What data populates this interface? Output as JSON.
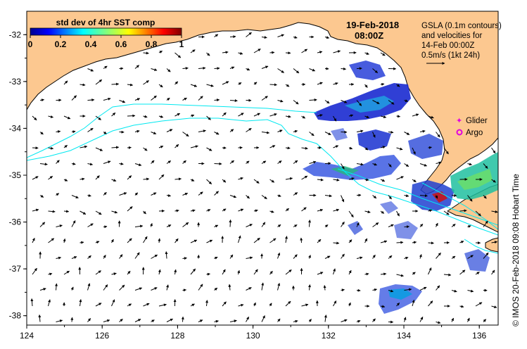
{
  "colorbar": {
    "title": "std dev of 4hr SST comp",
    "ticks": [
      "0",
      "0.2",
      "0.4",
      "0.6",
      "0.8",
      "1"
    ],
    "range": [
      0,
      1
    ]
  },
  "timestamp": {
    "date": "19-Feb-2018",
    "time": "08:00Z"
  },
  "info": {
    "line1": "GSLA (0.1m contours)",
    "line2": "and velocities for",
    "line3": "14-Feb 00:00Z",
    "line4": "0.5m/s (1kt 24h)"
  },
  "legend": {
    "glider": "Glider",
    "argo": "Argo",
    "glider_color": "#e000e0",
    "argo_color": "#e000e0"
  },
  "axes": {
    "lon_ticks": [
      "124",
      "126",
      "128",
      "130",
      "132",
      "134",
      "136"
    ],
    "lat_ticks": [
      "-32",
      "-33",
      "-34",
      "-35",
      "-36",
      "-37",
      "-38"
    ],
    "lon_range": [
      124,
      136.5
    ],
    "lat_range": [
      -38.2,
      -31.5
    ]
  },
  "credit": "© IMOS 20-Feb-2018 09:08 Hobart Time",
  "colors": {
    "land": "#fcc890",
    "ocean": "#ffffff",
    "contour": "#00e8f0"
  }
}
